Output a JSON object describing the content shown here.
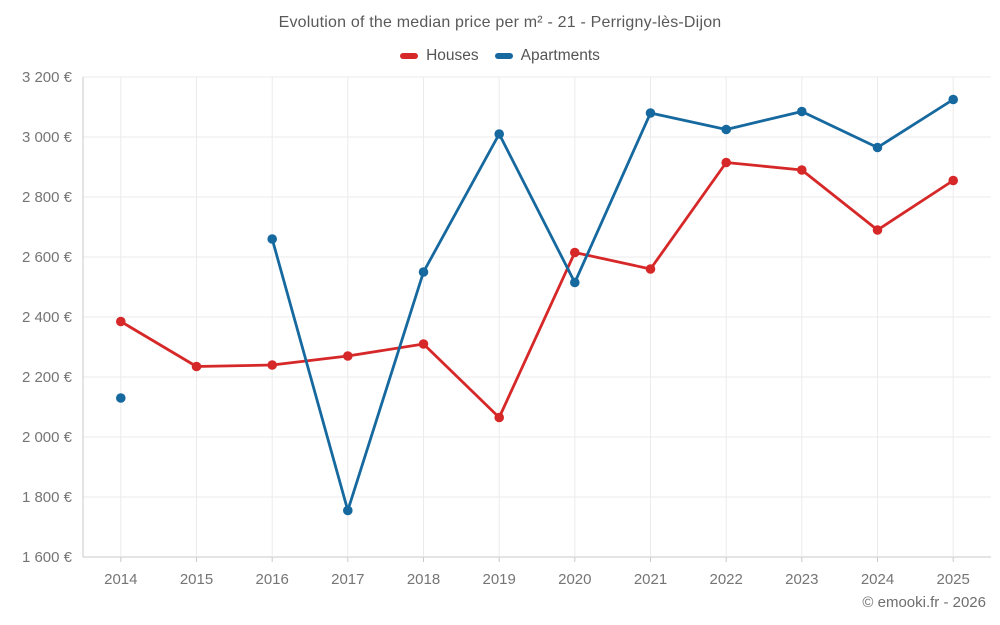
{
  "chart": {
    "title": "Evolution of the median price per m² - 21 - Perrigny-lès-Dijon",
    "watermark": "© emooki.fr - 2026"
  },
  "chart_data": {
    "type": "line",
    "title": "Evolution of the median price per m² - 21 - Perrigny-lès-Dijon",
    "x": [
      2014,
      2015,
      2016,
      2017,
      2018,
      2019,
      2020,
      2021,
      2022,
      2023,
      2024,
      2025
    ],
    "x_labels": [
      "2014",
      "2015",
      "2016",
      "2017",
      "2018",
      "2019",
      "2020",
      "2021",
      "2022",
      "2023",
      "2024",
      "2025"
    ],
    "series": [
      {
        "name": "Houses",
        "color": "#d62828",
        "values": [
          2385,
          2235,
          2240,
          2270,
          2310,
          2065,
          2615,
          2560,
          2915,
          2890,
          2690,
          2855
        ]
      },
      {
        "name": "Apartments",
        "color": "#16699f",
        "values": [
          2130,
          null,
          2660,
          1755,
          2550,
          3010,
          2515,
          3080,
          3025,
          3085,
          2965,
          3125
        ]
      }
    ],
    "ylim": [
      1600,
      3200
    ],
    "ytick_step": 200,
    "ytick_labels": [
      "1 600 €",
      "1 800 €",
      "2 000 €",
      "2 200 €",
      "2 400 €",
      "2 600 €",
      "2 800 €",
      "3 000 €",
      "3 200 €"
    ],
    "ylabel_unit": "€",
    "grid": true,
    "legend_position": "top",
    "missing_points": [
      "Apartments 2015"
    ],
    "watermark": "© emooki.fr - 2026"
  }
}
